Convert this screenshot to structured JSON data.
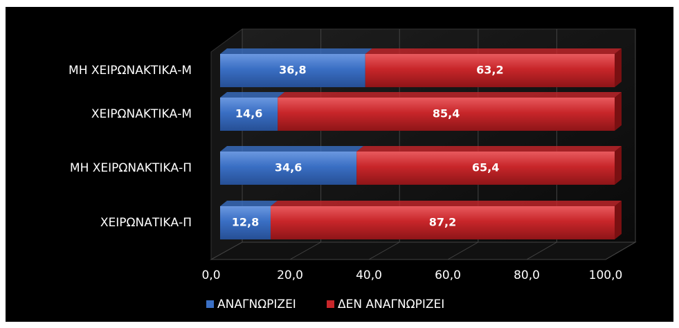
{
  "chart_data": {
    "type": "stacked-barh",
    "categories": [
      "ΜΗ ΧΕΙΡΩΝΑΚΤΙΚΑ-Μ",
      "ΧΕΙΡΩΝΑΚΤΙΚΑ-Μ",
      "ΜΗ ΧΕΙΡΩΝΑΚΤΙΚΑ-Π",
      "ΧΕΙΡΩΝΑΤΙΚΑ-Π"
    ],
    "series": [
      {
        "name": "ΑΝΑΓΝΩΡΙΖΕΙ",
        "color": "#3a6fc4",
        "values": [
          36.8,
          14.6,
          34.6,
          12.8
        ],
        "value_labels": [
          "36,8",
          "14,6",
          "34,6",
          "12,8"
        ]
      },
      {
        "name": "ΔΕΝ ΑΝΑΓΝΩΡΙΖΕΙ",
        "color": "#c8262a",
        "values": [
          63.2,
          85.4,
          65.4,
          87.2
        ],
        "value_labels": [
          "63,2",
          "85,4",
          "65,4",
          "87,2"
        ]
      }
    ],
    "xlim": [
      0,
      100
    ],
    "xticks": [
      {
        "value": 0,
        "label": "0,0"
      },
      {
        "value": 20,
        "label": "20,0"
      },
      {
        "value": 40,
        "label": "40,0"
      },
      {
        "value": 60,
        "label": "60,0"
      },
      {
        "value": 80,
        "label": "80,0"
      },
      {
        "value": 100,
        "label": "100,0"
      }
    ],
    "grid": true,
    "legend": "bottom"
  }
}
